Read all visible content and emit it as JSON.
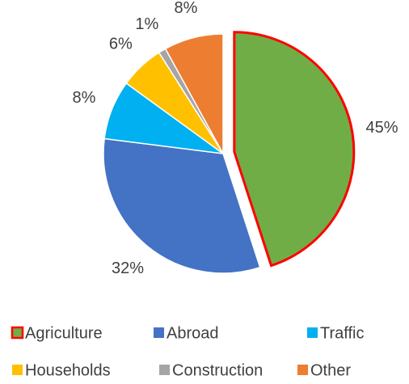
{
  "chart_data": {
    "type": "pie",
    "categories": [
      "Agriculture",
      "Abroad",
      "Traffic",
      "Households",
      "Construction",
      "Other"
    ],
    "values": [
      45,
      32,
      8,
      6,
      1,
      8
    ],
    "value_labels": [
      "45%",
      "32%",
      "8%",
      "6%",
      "1%",
      "8%"
    ],
    "colors": [
      "#70ad47",
      "#4472c4",
      "#00b0f0",
      "#ffc000",
      "#a5a5a5",
      "#ed7d31"
    ],
    "exploded": "Agriculture",
    "outline_color": "#ff0000",
    "legend": "bottom"
  }
}
